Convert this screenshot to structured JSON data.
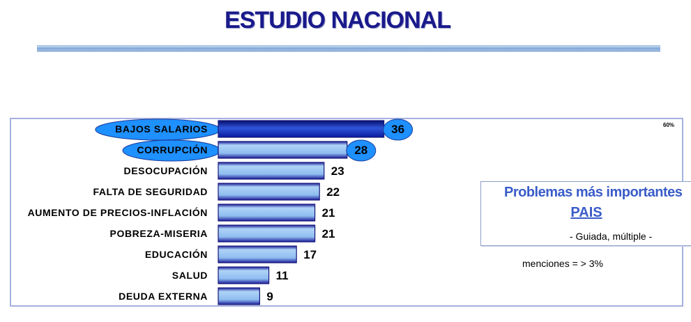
{
  "page": {
    "title": "ESTUDIO NACIONAL"
  },
  "legend": {
    "title": "Problemas más importantes",
    "subtitle": "PAIS",
    "note": "- Guiada, múltiple -"
  },
  "mentions_note": "menciones = > 3%",
  "colors": {
    "title": "#1a1a8c",
    "bar_normal_light": "#aed3f6",
    "bar_normal_dark": "#1e1e9a",
    "bar_highlight": "#0a1a9e",
    "ellipse_fill": "#1e90ff",
    "frame": "#a4b0e0"
  },
  "chart_data": {
    "type": "bar",
    "orientation": "horizontal",
    "title": "",
    "xlabel": "",
    "ylabel": "",
    "xlim": [
      0,
      60
    ],
    "axis_max_label": "60%",
    "grid": false,
    "categories": [
      "BAJOS SALARIOS",
      "CORRUPCIÓN",
      "DESOCUPACIÓN",
      "FALTA DE SEGURIDAD",
      "AUMENTO DE PRECIOS-INFLACIÓN",
      "POBREZA-MISERIA",
      "EDUCACIÓN",
      "SALUD",
      "DEUDA EXTERNA"
    ],
    "values": [
      36,
      28,
      23,
      22,
      21,
      21,
      17,
      11,
      9
    ],
    "highlighted": [
      "BAJOS SALARIOS",
      "CORRUPCIÓN"
    ]
  }
}
